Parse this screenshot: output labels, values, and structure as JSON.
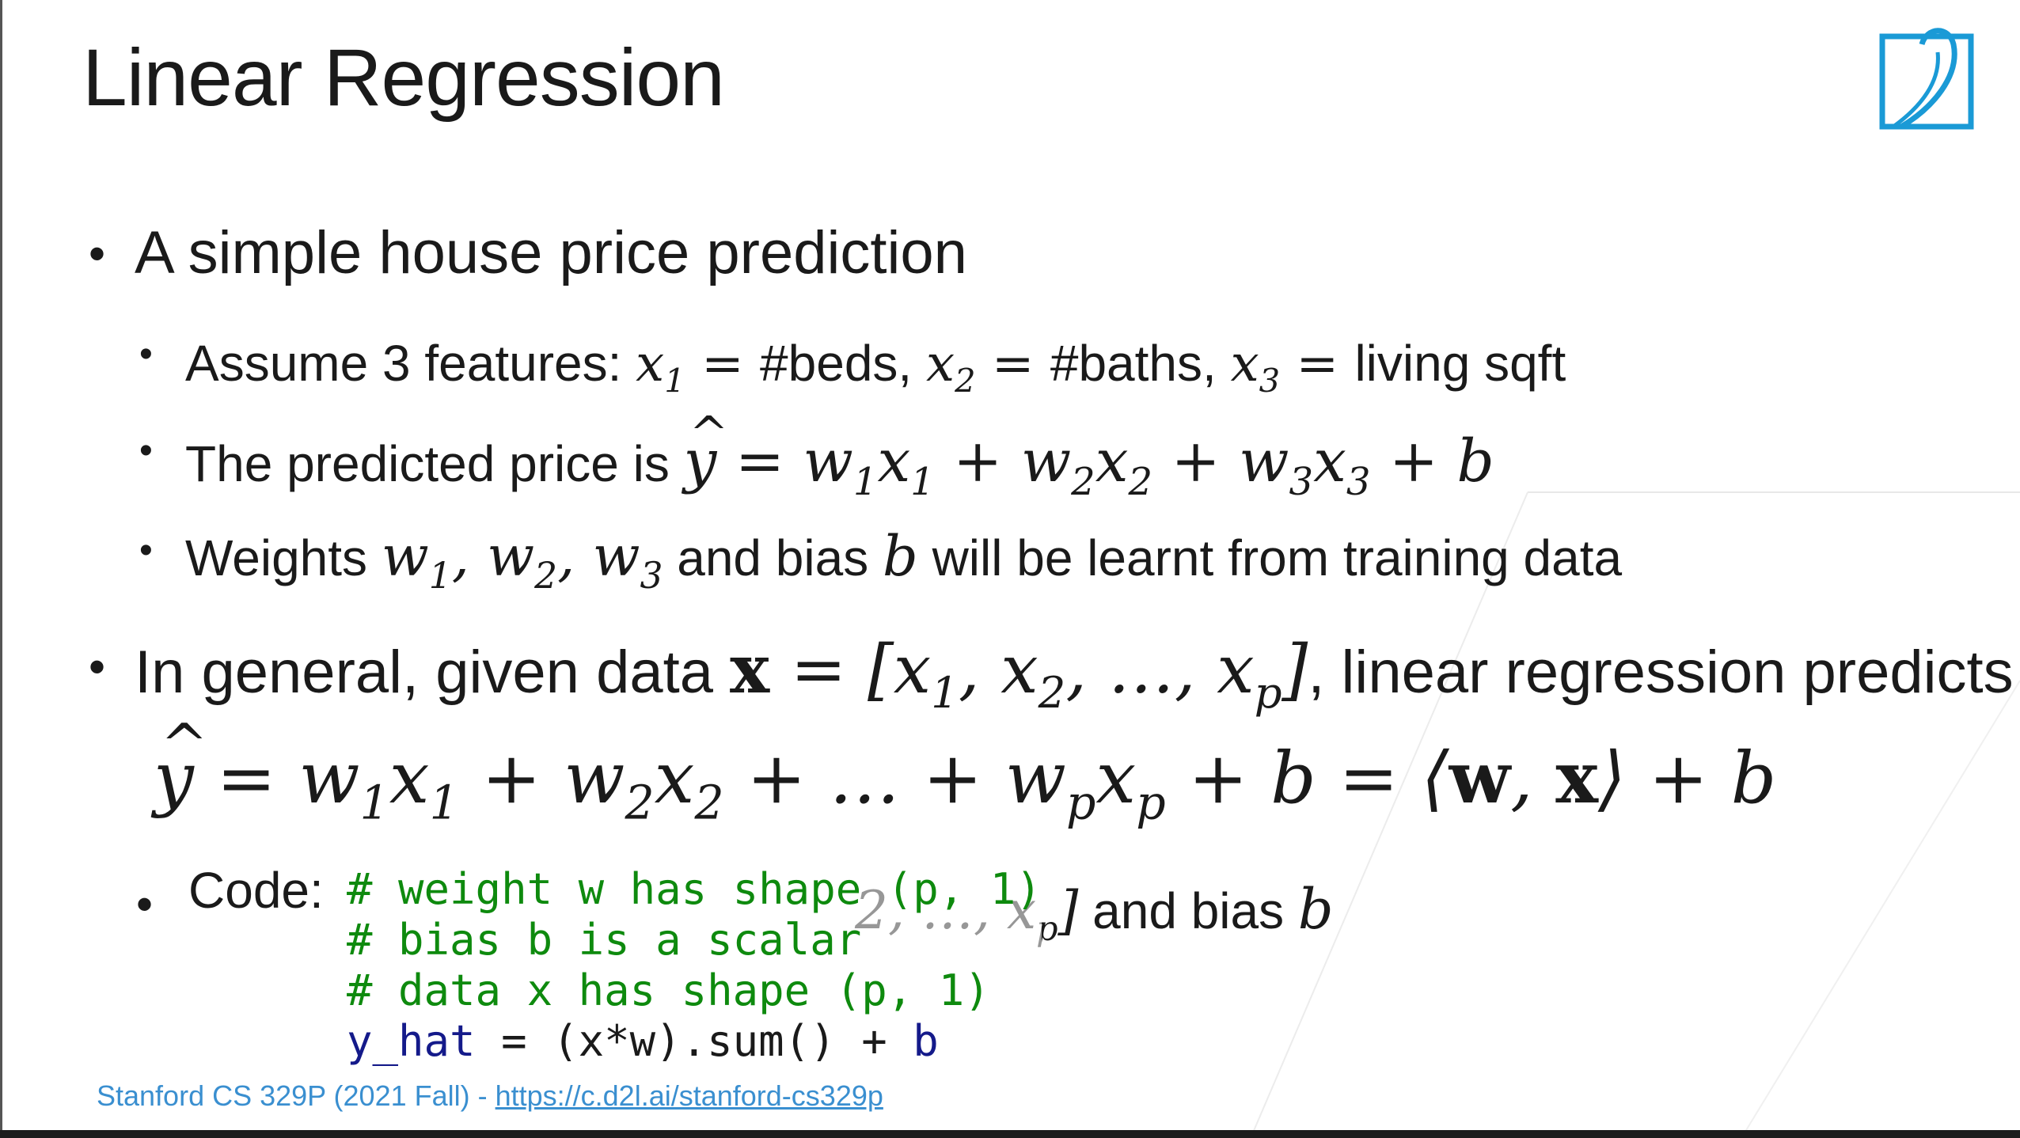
{
  "slide": {
    "title": "Linear Regression",
    "logo": "d2l-logo",
    "bullets": {
      "b1": "A simple house price prediction",
      "b1_1": {
        "pre": "Assume 3 features: ",
        "f1": "#beds, ",
        "f2": "#baths, ",
        "f3": "living sqft"
      },
      "b1_2": {
        "pre": "The predicted price is "
      },
      "b1_3": {
        "pre": "Weights ",
        "mid": " and bias ",
        "post": " will be learnt from training data"
      },
      "b2": {
        "pre": "In general, given data ",
        "post": ", linear regression predicts"
      },
      "b3": {
        "label": "Code:",
        "ghost_and_bias": "and bias"
      }
    },
    "code": {
      "line1": "# weight w has shape (p, 1)",
      "line2": "# bias b is a scalar",
      "line3": "# data x has shape (p, 1)",
      "line4_var": "y_hat",
      "line4_rest": " = (x*w).sum() + ",
      "line4_b": "b"
    },
    "footer": {
      "text": "Stanford CS 329P (2021 Fall) - ",
      "link": "https://c.d2l.ai/stanford-cs329p"
    }
  },
  "colors": {
    "accent": "#1a9ad6",
    "comment": "#0e8a0e",
    "variable": "#141a8a",
    "footer": "#3a8fd0"
  }
}
